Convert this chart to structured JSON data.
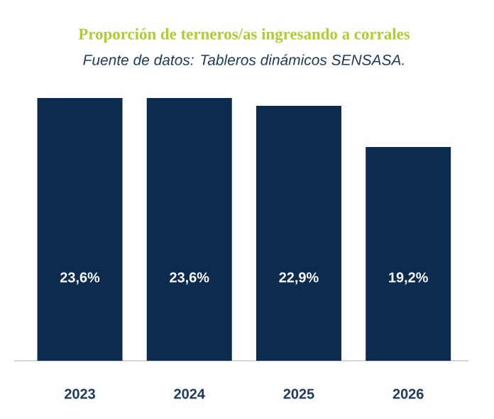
{
  "chart_data": {
    "type": "bar",
    "title": "Proporción de terneros/as ingresando a corrales",
    "subtitle": "Fuente de datos: Tableros dinámicos SENSASA.",
    "categories": [
      "2023",
      "2024",
      "2025",
      "2026"
    ],
    "values": [
      23.6,
      23.6,
      22.9,
      19.2
    ],
    "value_labels": [
      "23,6%",
      "23,6%",
      "22,9%",
      "19,2%"
    ],
    "color": "#0d2b4e"
  }
}
